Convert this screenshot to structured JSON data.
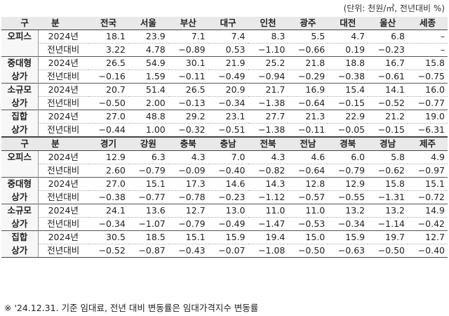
{
  "unit_note": "(단위: 천원/㎡, 전년대비 %)",
  "header_label": "구 분",
  "row_sub_labels": {
    "year": "2024년",
    "change": "전년대비"
  },
  "sections": [
    {
      "regions": [
        "전국",
        "서울",
        "부산",
        "대구",
        "인천",
        "광주",
        "대전",
        "울산",
        "세종"
      ],
      "categories": [
        {
          "label": "오피스",
          "label2": "",
          "year": [
            "18.1",
            "23.9",
            "7.1",
            "7.4",
            "8.3",
            "5.5",
            "4.7",
            "6.8",
            "–"
          ],
          "change": [
            "3.22",
            "4.78",
            "−0.89",
            "0.53",
            "−1.10",
            "−0.66",
            "0.19",
            "−0.23",
            "–"
          ]
        },
        {
          "label": "중대형",
          "label2": "상가",
          "year": [
            "26.5",
            "54.9",
            "30.1",
            "21.9",
            "25.2",
            "21.8",
            "18.8",
            "16.7",
            "15.8"
          ],
          "change": [
            "−0.16",
            "1.59",
            "−0.11",
            "−0.49",
            "−0.94",
            "−0.29",
            "−0.38",
            "−0.61",
            "−0.75"
          ]
        },
        {
          "label": "소규모",
          "label2": "상가",
          "year": [
            "20.7",
            "51.4",
            "26.5",
            "20.9",
            "21.7",
            "16.9",
            "15.4",
            "14.1",
            "16.0"
          ],
          "change": [
            "−0.50",
            "2.00",
            "−0.13",
            "−0.34",
            "−1.38",
            "−0.64",
            "−0.15",
            "−0.52",
            "−0.77"
          ]
        },
        {
          "label": "집합",
          "label2": "상가",
          "year": [
            "27.0",
            "48.8",
            "29.2",
            "23.1",
            "27.7",
            "21.3",
            "22.9",
            "21.2",
            "19.0"
          ],
          "change": [
            "−0.44",
            "1.00",
            "−0.32",
            "−0.51",
            "−1.38",
            "−0.11",
            "−0.05",
            "−0.15",
            "−6.31"
          ]
        }
      ]
    },
    {
      "regions": [
        "경기",
        "강원",
        "충북",
        "충남",
        "전북",
        "전남",
        "경북",
        "경남",
        "제주"
      ],
      "categories": [
        {
          "label": "오피스",
          "label2": "",
          "year": [
            "12.9",
            "6.3",
            "4.3",
            "7.0",
            "4.3",
            "4.6",
            "6.0",
            "5.8",
            "4.9"
          ],
          "change": [
            "2.60",
            "−0.79",
            "−0.09",
            "−0.40",
            "−0.82",
            "−0.64",
            "−0.79",
            "−0.62",
            "−0.97"
          ]
        },
        {
          "label": "중대형",
          "label2": "상가",
          "year": [
            "27.0",
            "15.1",
            "17.3",
            "14.6",
            "14.3",
            "12.8",
            "12.9",
            "15.8",
            "15.1"
          ],
          "change": [
            "−0.38",
            "−0.77",
            "−0.78",
            "−0.23",
            "−1.12",
            "−0.57",
            "−0.55",
            "−1.31",
            "−0.72"
          ]
        },
        {
          "label": "소규모",
          "label2": "상가",
          "year": [
            "24.1",
            "13.6",
            "12.7",
            "13.0",
            "11.0",
            "11.0",
            "13.2",
            "13.2",
            "14.9"
          ],
          "change": [
            "−0.34",
            "−1.07",
            "−0.79",
            "−0.49",
            "−1.47",
            "−0.53",
            "−0.34",
            "−1.14",
            "−0.42"
          ]
        },
        {
          "label": "집합",
          "label2": "상가",
          "year": [
            "30.5",
            "18.5",
            "15.1",
            "15.9",
            "19.4",
            "15.0",
            "15.9",
            "19.7",
            "12.7"
          ],
          "change": [
            "−0.52",
            "−0.87",
            "−0.43",
            "−0.07",
            "−1.08",
            "−0.50",
            "−0.63",
            "−0.50",
            "−0.40"
          ]
        }
      ]
    }
  ],
  "footnote": "※ '24.12.31. 기준 임대료, 전년 대비 변동률은 임대가격지수 변동률"
}
